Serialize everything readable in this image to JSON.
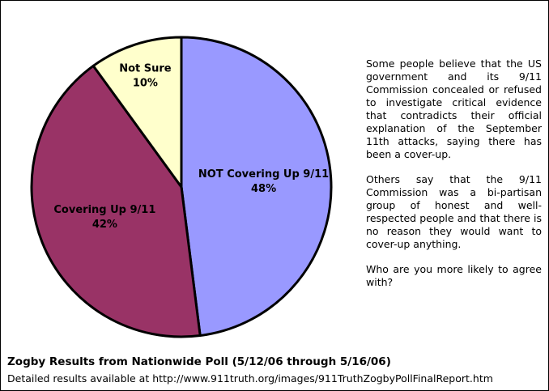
{
  "chart_data": {
    "type": "pie",
    "title": "Zogby Results from Nationwide Poll (5/12/06 through 5/16/06)",
    "subtitle": "Detailed results available at http://www.911truth.org/images/911TruthZogbyPollFinalReport.htm",
    "categories": [
      "NOT Covering Up 9/11",
      "Covering Up 9/11",
      "Not Sure"
    ],
    "values": [
      48,
      42,
      10
    ],
    "value_labels": [
      "48%",
      "42%",
      "10%"
    ],
    "colors": [
      "#9999ff",
      "#993366",
      "#ffffcc"
    ],
    "annotations": [
      "Some people believe that the US government and its 9/11 Commission concealed or refused to investigate critical evidence that contradicts their official explanation of the September 11th attacks, saying there has been a cover-up.",
      "Others say that the 9/11 Commission was a bi-partisan group of honest and well-respected people and that there is no reason they would want to cover-up anything.",
      "Who are you more likely to agree with?"
    ]
  }
}
